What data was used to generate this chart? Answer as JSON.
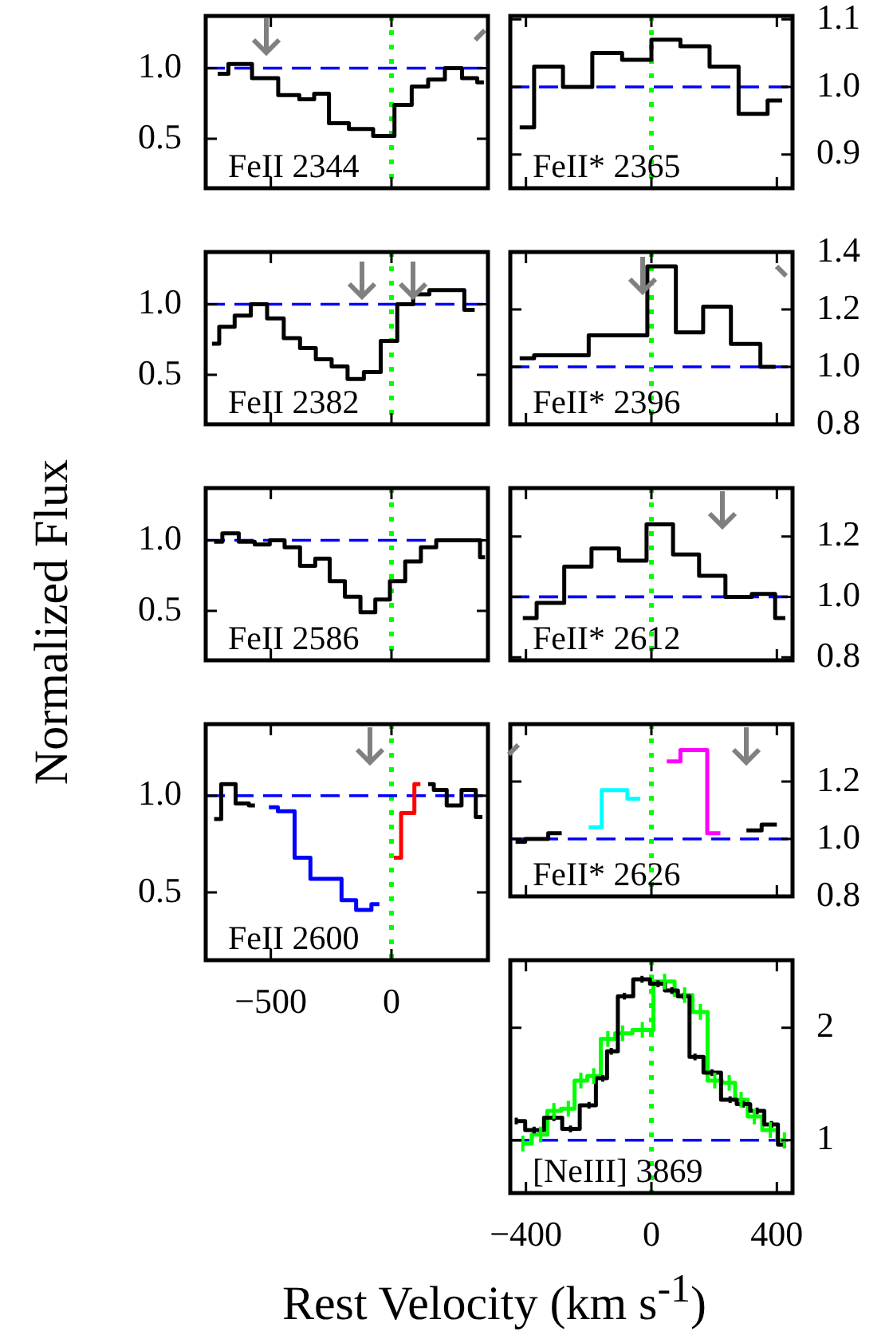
{
  "chart_data": [
    {
      "type": "step",
      "annotations": [
        "FeII 2344"
      ],
      "xlim": [
        -770,
        400
      ],
      "ylim": [
        0.15,
        1.37
      ],
      "yticks": [
        {
          "value": 0.5,
          "label": "0.5"
        },
        {
          "value": 1,
          "label": "1.0"
        }
      ],
      "tick_labels": "y",
      "ref_lines": [
        {
          "axis": "x",
          "value": 0,
          "color": "#00ff00",
          "line_style": "dotted"
        },
        {
          "axis": "y",
          "value": 1,
          "color": "#0000ff",
          "line_style": "dashed"
        }
      ],
      "series": [
        {
          "color": "#000000",
          "x": [
            -720,
            -632,
            -524,
            -415,
            -349,
            -292,
            -226,
            -127,
            -25,
            50,
            118,
            186,
            257,
            328,
            383
          ],
          "values": [
            0.96,
            1.03,
            0.93,
            0.81,
            0.78,
            0.82,
            0.61,
            0.57,
            0.52,
            0.74,
            0.87,
            0.92,
            1.0,
            0.93,
            0.9
          ]
        }
      ]
    },
    {
      "type": "step",
      "annotations": [
        "FeII 2382"
      ],
      "xlim": [
        -770,
        400
      ],
      "ylim": [
        0.15,
        1.37
      ],
      "yticks": [
        {
          "value": 0.5,
          "label": "0.5"
        },
        {
          "value": 1,
          "label": "1.0"
        }
      ],
      "tick_labels": "y",
      "ref_lines": [
        {
          "axis": "x",
          "value": 0,
          "color": "#00ff00",
          "line_style": "dotted"
        },
        {
          "axis": "y",
          "value": 1,
          "color": "#0000ff",
          "line_style": "dashed"
        }
      ],
      "series": [
        {
          "color": "#000000",
          "x": [
            -744,
            -684,
            -616,
            -550,
            -481,
            -412,
            -346,
            -281,
            -215,
            -149,
            -80,
            -9,
            57,
            123,
            191,
            259,
            345
          ],
          "values": [
            0.72,
            0.84,
            0.92,
            1.0,
            0.9,
            0.76,
            0.69,
            0.61,
            0.56,
            0.47,
            0.52,
            0.74,
            1.0,
            1.07,
            1.1,
            1.1,
            0.96
          ]
        }
      ]
    },
    {
      "type": "step",
      "ylabel": "Normalized Flux",
      "annotations": [
        "FeII 2586"
      ],
      "xlim": [
        -770,
        400
      ],
      "ylim": [
        0.15,
        1.37
      ],
      "yticks": [
        {
          "value": 0.5,
          "label": "0.5"
        },
        {
          "value": 1,
          "label": "1.0"
        }
      ],
      "tick_labels": "y",
      "ref_lines": [
        {
          "axis": "x",
          "value": 0,
          "color": "#00ff00",
          "line_style": "dotted"
        },
        {
          "axis": "y",
          "value": 1,
          "color": "#0000ff",
          "line_style": "dashed"
        }
      ],
      "series": [
        {
          "color": "#000000",
          "x": [
            -735,
            -667,
            -599,
            -535,
            -474,
            -412,
            -346,
            -286,
            -226,
            -160,
            -97,
            -37,
            24,
            90,
            154,
            217,
            283,
            346,
            388
          ],
          "values": [
            0.99,
            1.05,
            0.99,
            0.97,
            1.0,
            0.95,
            0.82,
            0.87,
            0.71,
            0.6,
            0.49,
            0.58,
            0.71,
            0.85,
            0.95,
            1.0,
            1.0,
            1.0,
            0.88
          ]
        }
      ]
    },
    {
      "type": "step",
      "annotations": [
        "FeII 2600"
      ],
      "xlim": [
        -770,
        400
      ],
      "xticks": [
        {
          "value": -500,
          "label": "−500"
        },
        {
          "value": 0,
          "label": "0"
        }
      ],
      "ylim": [
        0.15,
        1.37
      ],
      "yticks": [
        {
          "value": 0.5,
          "label": "0.5"
        },
        {
          "value": 1,
          "label": "1.0"
        }
      ],
      "ref_lines": [
        {
          "axis": "x",
          "value": 0,
          "color": "#00ff00",
          "line_style": "dotted"
        },
        {
          "axis": "y",
          "value": 1,
          "color": "#0000ff",
          "line_style": "dashed"
        }
      ],
      "series": [
        {
          "color": "#000000",
          "x": [
            -735,
            -676,
            -616,
            -566
          ],
          "values": [
            0.88,
            1.06,
            0.96,
            0.95
          ]
        },
        {
          "color": "#0000ff",
          "x": [
            -508,
            -434,
            -369,
            -303,
            -237,
            -177,
            -116,
            -50
          ],
          "values": [
            0.94,
            0.92,
            0.68,
            0.57,
            0.57,
            0.46,
            0.41,
            0.44
          ]
        },
        {
          "color": "#ff0000",
          "x": [
            10,
            70,
            120
          ],
          "values": [
            0.68,
            0.91,
            1.06
          ]
        },
        {
          "color": "#000000",
          "x": [
            152,
            199,
            259,
            322,
            377
          ],
          "values": [
            1.06,
            1.03,
            0.95,
            1.03,
            0.89
          ]
        }
      ]
    },
    {
      "type": "step",
      "annotations": [
        "FeII* 2365"
      ],
      "xlim": [
        -450,
        450
      ],
      "ylim": [
        0.85,
        1.105
      ],
      "yticks": [
        {
          "value": 0.9,
          "label": "0.9"
        },
        {
          "value": 1,
          "label": "1.0"
        },
        {
          "value": 1.1,
          "label": "1.1"
        }
      ],
      "tick_labels": "y",
      "ref_lines": [
        {
          "axis": "x",
          "value": 0,
          "color": "#00ff00",
          "line_style": "dotted"
        },
        {
          "axis": "y",
          "value": 1,
          "color": "#0000ff",
          "line_style": "dashed"
        }
      ],
      "series": [
        {
          "color": "#000000",
          "x": [
            -420,
            -328,
            -236,
            -141,
            -46,
            46,
            139,
            232,
            324,
            417
          ],
          "values": [
            0.94,
            1.03,
            1.0,
            1.05,
            1.04,
            1.07,
            1.06,
            1.03,
            0.96,
            0.98
          ]
        }
      ]
    },
    {
      "type": "step",
      "annotations": [
        "FeII* 2396"
      ],
      "xlim": [
        -450,
        450
      ],
      "ylim": [
        0.8,
        1.4
      ],
      "yticks": [
        {
          "value": 0.8,
          "label": "0.8"
        },
        {
          "value": 1,
          "label": "1.0"
        },
        {
          "value": 1.2,
          "label": "1.2"
        },
        {
          "value": 1.4,
          "label": "1.4"
        }
      ],
      "tick_labels": "y",
      "ref_lines": [
        {
          "axis": "x",
          "value": 0,
          "color": "#00ff00",
          "line_style": "dotted"
        },
        {
          "axis": "y",
          "value": 1,
          "color": "#0000ff",
          "line_style": "dashed"
        }
      ],
      "series": [
        {
          "color": "#000000",
          "x": [
            -420,
            -328,
            -244,
            -156,
            -60,
            34,
            122,
            208,
            299,
            396
          ],
          "values": [
            1.03,
            1.04,
            1.04,
            1.11,
            1.11,
            1.35,
            1.12,
            1.21,
            1.08,
            1.0
          ]
        }
      ]
    },
    {
      "type": "step",
      "annotations": [
        "FeII* 2612"
      ],
      "xlim": [
        -450,
        450
      ],
      "ylim": [
        0.79,
        1.36
      ],
      "yticks": [
        {
          "value": 0.8,
          "label": "0.8"
        },
        {
          "value": 1,
          "label": "1.0"
        },
        {
          "value": 1.2,
          "label": "1.2"
        }
      ],
      "tick_labels": "y",
      "ref_lines": [
        {
          "axis": "x",
          "value": 0,
          "color": "#00ff00",
          "line_style": "dotted"
        },
        {
          "axis": "y",
          "value": 1,
          "color": "#0000ff",
          "line_style": "dashed"
        }
      ],
      "series": [
        {
          "color": "#000000",
          "x": [
            -410,
            -322,
            -234,
            -148,
            -59,
            28,
            110,
            194,
            278,
            362,
            427
          ],
          "values": [
            0.93,
            0.98,
            1.1,
            1.16,
            1.12,
            1.24,
            1.14,
            1.07,
            1.0,
            1.01,
            0.93
          ]
        }
      ]
    },
    {
      "type": "step",
      "annotations": [
        "FeII* 2626"
      ],
      "xlim": [
        -450,
        450
      ],
      "ylim": [
        0.8,
        1.4
      ],
      "yticks": [
        {
          "value": 0.8,
          "label": "0.8"
        },
        {
          "value": 1,
          "label": "1.0"
        },
        {
          "value": 1.2,
          "label": "1.2"
        }
      ],
      "tick_labels": "y",
      "ref_lines": [
        {
          "axis": "x",
          "value": 0,
          "color": "#00ff00",
          "line_style": "dotted"
        },
        {
          "axis": "y",
          "value": 1,
          "color": "#0000ff",
          "line_style": "dashed"
        }
      ],
      "series": [
        {
          "color": "#000000",
          "x": [
            -433,
            -372,
            -286
          ],
          "values": [
            0.99,
            1.0,
            1.02
          ]
        },
        {
          "color": "#00ffff",
          "x": [
            -200,
            -117,
            -36
          ],
          "values": [
            1.04,
            1.17,
            1.14
          ]
        },
        {
          "color": "#ff00ff",
          "x": [
            49,
            136,
            220
          ],
          "values": [
            1.27,
            1.31,
            1.02
          ]
        },
        {
          "color": "#000000",
          "x": [
            303,
            400
          ],
          "values": [
            1.03,
            1.05
          ]
        }
      ]
    },
    {
      "type": "step",
      "xlabel": "Rest Velocity (km s$^{-1}$)",
      "annotations": [
        "[NeIII] 3869"
      ],
      "xlim": [
        -450,
        450
      ],
      "xticks": [
        {
          "value": -400,
          "label": "−400"
        },
        0,
        400
      ],
      "ylim": [
        0.53,
        2.6
      ],
      "yticks": [
        1,
        2
      ],
      "ref_lines": [
        {
          "axis": "x",
          "value": 0,
          "color": "#00ff00",
          "line_style": "dotted"
        },
        {
          "axis": "y",
          "value": 1,
          "color": "#0000ff",
          "line_style": "dashed"
        }
      ],
      "series": [
        {
          "color": "#000000",
          "x": [
            -431,
            -374,
            -311,
            -258,
            -199,
            -155,
            -128,
            -86,
            -30,
            21,
            65,
            104,
            139,
            193,
            251,
            293,
            337,
            383,
            424
          ],
          "values": [
            1.17,
            1.09,
            1.2,
            1.1,
            1.31,
            1.55,
            1.79,
            2.28,
            2.43,
            2.39,
            2.33,
            2.28,
            1.74,
            1.6,
            1.36,
            1.32,
            1.26,
            1.14,
            0.96
          ],
          "errors": [
            0.03,
            0.03,
            0.03,
            0.03,
            0.03,
            0.03,
            0.03,
            0.03,
            0.03,
            0.03,
            0.03,
            0.03,
            0.03,
            0.03,
            0.03,
            0.03,
            0.03,
            0.03,
            0.03
          ]
        },
        {
          "color": "#00ff00",
          "x": [
            -410,
            -353,
            -311,
            -265,
            -225,
            -184,
            -139,
            -92,
            -29,
            42,
            106,
            156,
            202,
            248,
            286,
            328,
            379,
            424
          ],
          "values": [
            0.97,
            1.05,
            1.26,
            1.28,
            1.53,
            1.57,
            1.9,
            1.95,
            1.98,
            2.41,
            2.29,
            2.14,
            1.53,
            1.51,
            1.36,
            1.21,
            1.09,
            1.0
          ],
          "errors": [
            0.07,
            0.07,
            0.07,
            0.07,
            0.07,
            0.07,
            0.07,
            0.07,
            0.07,
            0.07,
            0.07,
            0.07,
            0.07,
            0.07,
            0.07,
            0.07,
            0.07,
            0.07
          ]
        }
      ]
    }
  ]
}
